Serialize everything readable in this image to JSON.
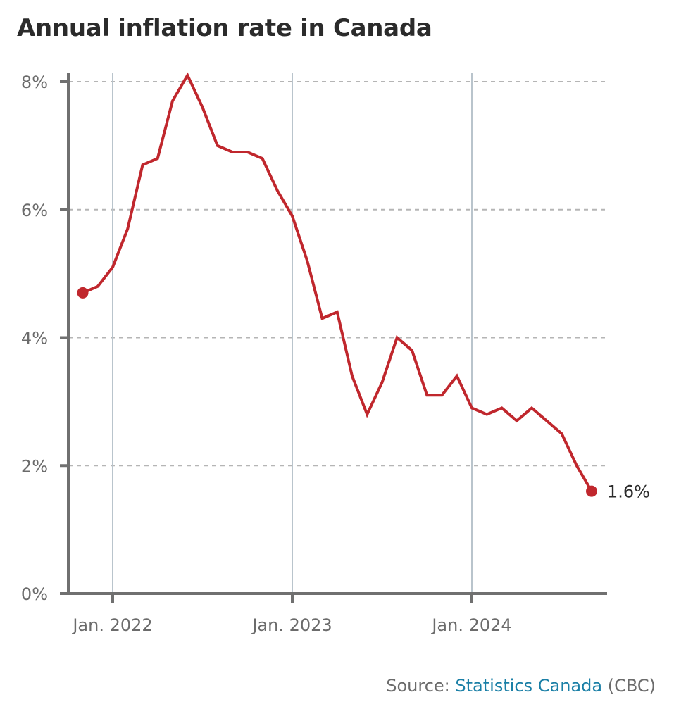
{
  "chart_data": {
    "type": "line",
    "title": "Annual inflation rate in Canada",
    "xlabel": "",
    "ylabel": "",
    "ylim": [
      0,
      8
    ],
    "yticks": [
      0,
      2,
      4,
      6,
      8
    ],
    "ytick_labels": [
      "0%",
      "2%",
      "4%",
      "6%",
      "8%"
    ],
    "xticks": [
      "2022-01",
      "2023-01",
      "2024-01"
    ],
    "xtick_labels": [
      "Jan. 2022",
      "Jan. 2023",
      "Jan. 2024"
    ],
    "grid": {
      "horizontal": "dashed",
      "vertical": "solid at year ticks"
    },
    "series": [
      {
        "name": "Annual inflation rate",
        "color": "#c0272d",
        "x": [
          "2021-11",
          "2021-12",
          "2022-01",
          "2022-02",
          "2022-03",
          "2022-04",
          "2022-05",
          "2022-06",
          "2022-07",
          "2022-08",
          "2022-09",
          "2022-10",
          "2022-11",
          "2022-12",
          "2023-01",
          "2023-02",
          "2023-03",
          "2023-04",
          "2023-05",
          "2023-06",
          "2023-07",
          "2023-08",
          "2023-09",
          "2023-10",
          "2023-11",
          "2023-12",
          "2024-01",
          "2024-02",
          "2024-03",
          "2024-04",
          "2024-05",
          "2024-06",
          "2024-07",
          "2024-08",
          "2024-09"
        ],
        "values": [
          4.7,
          4.8,
          5.1,
          5.7,
          6.7,
          6.8,
          7.7,
          8.1,
          7.6,
          7.0,
          6.9,
          6.9,
          6.8,
          6.3,
          5.9,
          5.2,
          4.3,
          4.4,
          3.4,
          2.8,
          3.3,
          4.0,
          3.8,
          3.1,
          3.1,
          3.4,
          2.9,
          2.8,
          2.9,
          2.7,
          2.9,
          2.7,
          2.5,
          2.0,
          1.6
        ]
      }
    ],
    "annotations": [
      {
        "label": "1.6%",
        "at": "2024-09"
      }
    ]
  },
  "source": {
    "prefix": "Source: ",
    "link": "Statistics Canada",
    "suffix": " (CBC)"
  }
}
